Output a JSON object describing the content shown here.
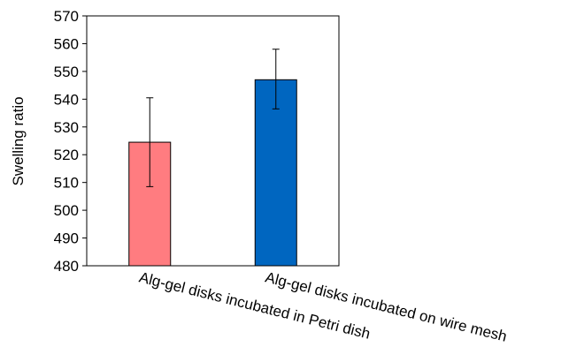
{
  "chart_data": {
    "type": "bar",
    "title": "",
    "xlabel": "",
    "ylabel": "Swelling ratio",
    "ylim": [
      480,
      570
    ],
    "yticks": [
      480,
      490,
      500,
      510,
      520,
      530,
      540,
      550,
      560,
      570
    ],
    "categories": [
      "Alg-gel disks incubated in Petri dish",
      "Alg-gel disks incubated on wire mesh"
    ],
    "values": [
      524.5,
      547
    ],
    "error_low": [
      508.5,
      536.5
    ],
    "error_high": [
      540.5,
      558
    ],
    "colors": [
      "#ff7c80",
      "#0066c0"
    ],
    "grid": false,
    "legend": "none"
  }
}
